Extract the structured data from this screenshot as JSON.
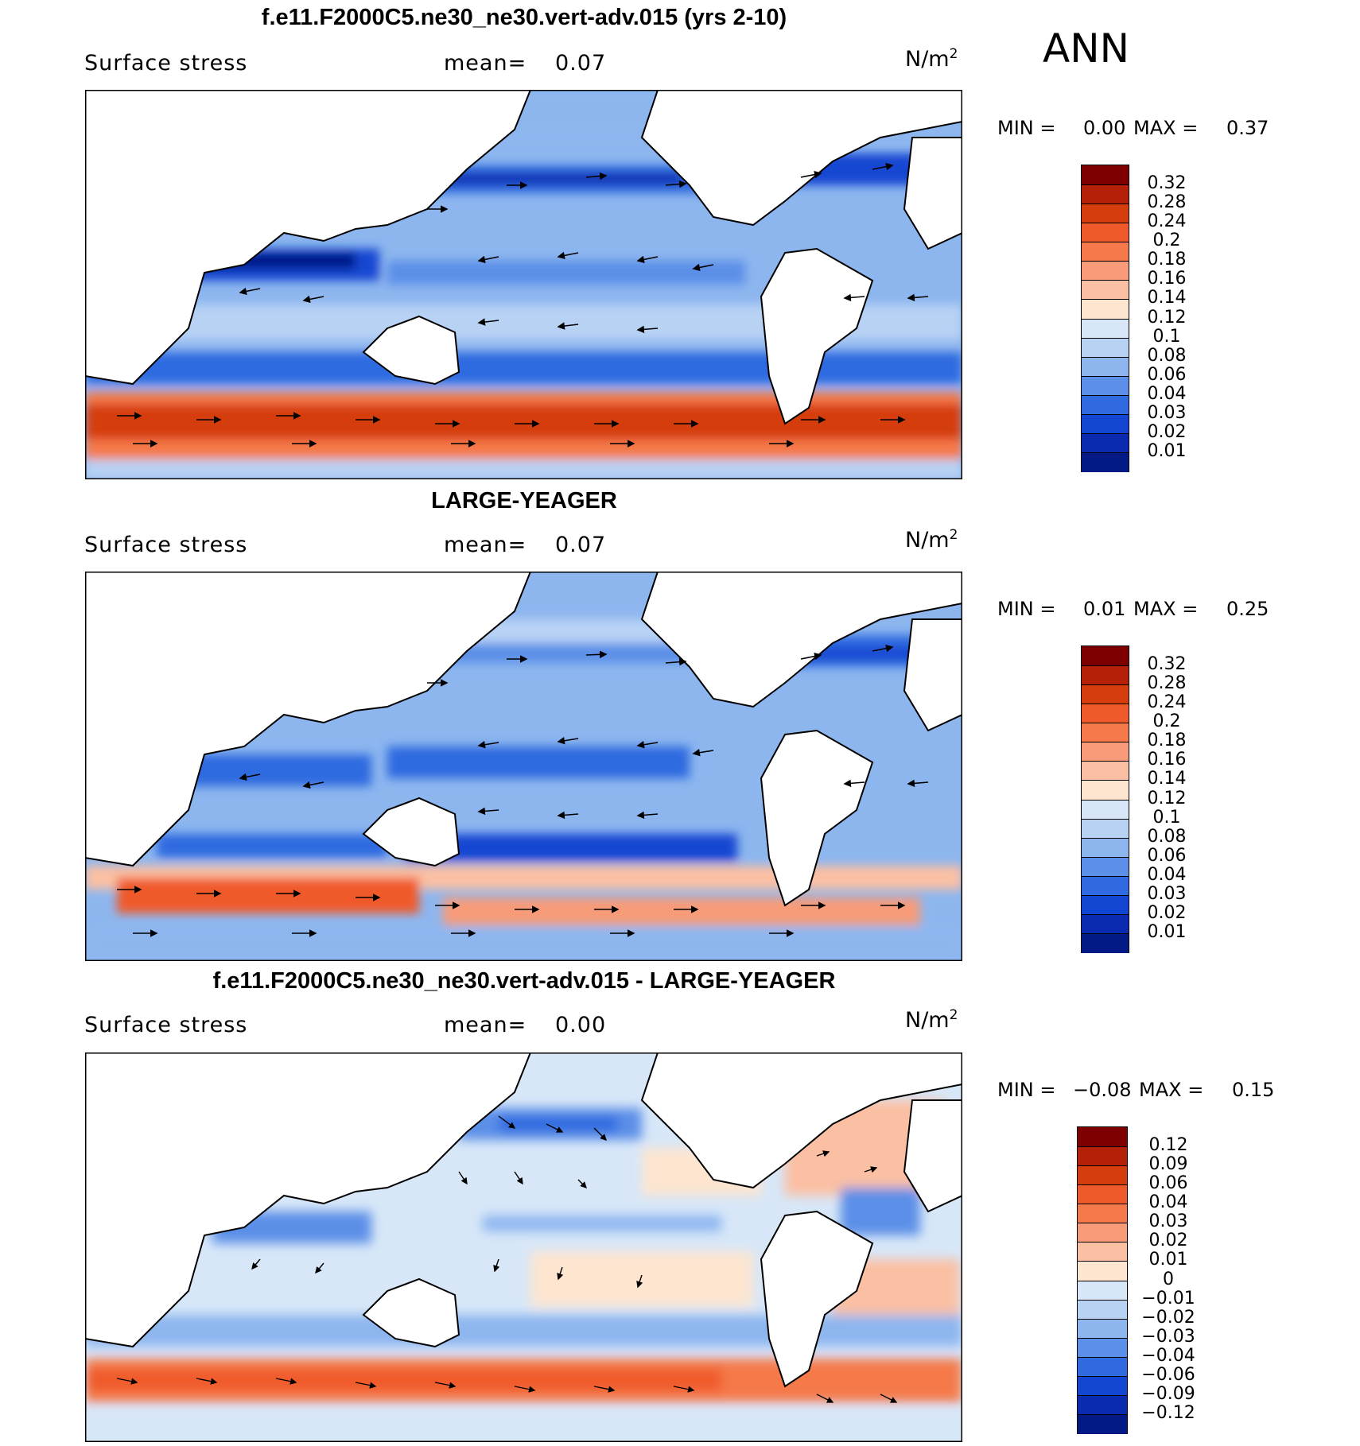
{
  "season_label": "ANN",
  "panels": [
    {
      "title": "f.e11.F2000C5.ne30_ne30.vert-adv.015 (yrs 2-10)",
      "variable": "Surface stress",
      "mean_label": "mean=",
      "mean_value": "0.07",
      "units_base": "N/m",
      "units_exp": "2",
      "min_label": "MIN =",
      "min_value": "0.00",
      "max_label": "MAX =",
      "max_value": "0.37",
      "colorbar": {
        "levels": [
          "0.32",
          "0.28",
          "0.24",
          "0.2",
          "0.18",
          "0.16",
          "0.14",
          "0.12",
          "0.1",
          "0.08",
          "0.06",
          "0.04",
          "0.03",
          "0.02",
          "0.01"
        ],
        "colors": [
          "#7f0000",
          "#b52008",
          "#d63d0d",
          "#f05a2a",
          "#f5794a",
          "#f89b78",
          "#fbc0a3",
          "#fde5d0",
          "#d7e7f8",
          "#b8d2f4",
          "#8db6ef",
          "#5b8fe8",
          "#2f6ae0",
          "#1246d2",
          "#0a2ab0",
          "#021986"
        ]
      }
    },
    {
      "title": "LARGE-YEAGER",
      "variable": "Surface stress",
      "mean_label": "mean=",
      "mean_value": "0.07",
      "units_base": "N/m",
      "units_exp": "2",
      "min_label": "MIN =",
      "min_value": "0.01",
      "max_label": "MAX =",
      "max_value": "0.25",
      "colorbar": {
        "levels": [
          "0.32",
          "0.28",
          "0.24",
          "0.2",
          "0.18",
          "0.16",
          "0.14",
          "0.12",
          "0.1",
          "0.08",
          "0.06",
          "0.04",
          "0.03",
          "0.02",
          "0.01"
        ],
        "colors": [
          "#7f0000",
          "#b52008",
          "#d63d0d",
          "#f05a2a",
          "#f5794a",
          "#f89b78",
          "#fbc0a3",
          "#fde5d0",
          "#d7e7f8",
          "#b8d2f4",
          "#8db6ef",
          "#5b8fe8",
          "#2f6ae0",
          "#1246d2",
          "#0a2ab0",
          "#021986"
        ]
      }
    },
    {
      "title": "f.e11.F2000C5.ne30_ne30.vert-adv.015 - LARGE-YEAGER",
      "variable": "Surface stress",
      "mean_label": "mean=",
      "mean_value": "0.00",
      "units_base": "N/m",
      "units_exp": "2",
      "min_label": "MIN =",
      "min_value": "−0.08",
      "max_label": "MAX =",
      "max_value": "0.15",
      "colorbar": {
        "levels": [
          "0.12",
          "0.09",
          "0.06",
          "0.04",
          "0.03",
          "0.02",
          "0.01",
          "0",
          "−0.01",
          "−0.02",
          "−0.03",
          "−0.04",
          "−0.06",
          "−0.09",
          "−0.12"
        ],
        "colors": [
          "#7f0000",
          "#b52008",
          "#d63d0d",
          "#f05a2a",
          "#f5794a",
          "#f89b78",
          "#fbc0a3",
          "#fde5d0",
          "#d7e7f8",
          "#b8d2f4",
          "#8db6ef",
          "#5b8fe8",
          "#2f6ae0",
          "#1246d2",
          "#0a2ab0",
          "#021986"
        ]
      }
    }
  ]
}
